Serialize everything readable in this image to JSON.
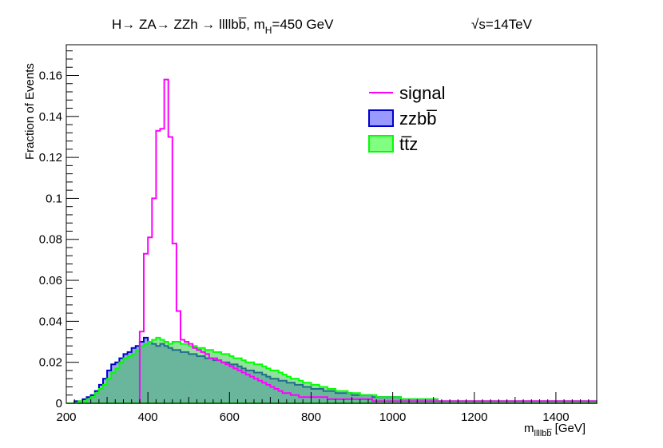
{
  "chart_data": {
    "type": "histogram",
    "title": "H→ ZA→ ZZh → llllbb̅, m_H=450 GeV",
    "title_main": "H→ ZA→ ZZh → llllbb̅, m",
    "title_sub": "H",
    "title_tail": "=450 GeV",
    "energy_label": "√s=14TeV",
    "ylabel": "Fraction of Events",
    "xlabel_main": "m",
    "xlabel_sub": "llllbb̅",
    "xlabel_unit": " [GeV]",
    "xlim": [
      200,
      1500
    ],
    "ylim": [
      0,
      0.175
    ],
    "x_ticks": [
      200,
      400,
      600,
      800,
      1000,
      1200,
      1400
    ],
    "y_ticks": [
      0,
      0.02,
      0.04,
      0.06,
      0.08,
      0.1,
      0.12,
      0.14,
      0.16
    ],
    "y_tick_labels": [
      "0",
      "0.02",
      "0.04",
      "0.06",
      "0.08",
      "0.1",
      "0.12",
      "0.14",
      "0.16"
    ],
    "bin_width": 10,
    "series": [
      {
        "name": "signal",
        "color": "#ff00ff",
        "fill": "none",
        "x_start": 380,
        "values": [
          0.035,
          0.073,
          0.081,
          0.1,
          0.133,
          0.134,
          0.158,
          0.13,
          0.078,
          0.045,
          0.031,
          0.03,
          0.029,
          0.027,
          0.026,
          0.025,
          0.024,
          0.022,
          0.022,
          0.021,
          0.02,
          0.019,
          0.018,
          0.017,
          0.016,
          0.015,
          0.014,
          0.013,
          0.012,
          0.011,
          0.01,
          0.009,
          0.008,
          0.007,
          0.006,
          0.005,
          0.005,
          0.004,
          0.004,
          0.003,
          0.003,
          0.003,
          0.003,
          0.003,
          0.003,
          0.003,
          0.002,
          0.002,
          0.002,
          0.002,
          0.002,
          0.002,
          0.002,
          0.002,
          0.002,
          0.002,
          0.002,
          0.001,
          0.001,
          0.001,
          0.001,
          0.001,
          0.001,
          0.001,
          0.001,
          0.001,
          0.001,
          0.001,
          0.001,
          0.001,
          0.001,
          0.001,
          0.001,
          0.001,
          0.001,
          0.001,
          0.001,
          0.001,
          0.001,
          0.001,
          0.001,
          0.001,
          0.001,
          0.001,
          0.001,
          0.001,
          0.001,
          0.001,
          0.001,
          0.001,
          0.001,
          0.001,
          0.001,
          0.001,
          0.001,
          0.001,
          0.001,
          0.001,
          0.001,
          0.001,
          0.001,
          0.001,
          0.001,
          0.001,
          0.001,
          0.001,
          0.001,
          0.001,
          0.001,
          0.001,
          0.001,
          0.001
        ]
      },
      {
        "name": "zzbb̅",
        "color": "#0000cc",
        "fill": "rgba(110,110,245,0.65)",
        "x_start": 200,
        "values": [
          0.0,
          0.0,
          0.001,
          0.001,
          0.002,
          0.003,
          0.004,
          0.006,
          0.009,
          0.012,
          0.016,
          0.019,
          0.02,
          0.022,
          0.024,
          0.025,
          0.027,
          0.028,
          0.03,
          0.032,
          0.03,
          0.029,
          0.028,
          0.029,
          0.028,
          0.027,
          0.026,
          0.026,
          0.025,
          0.025,
          0.024,
          0.024,
          0.023,
          0.023,
          0.022,
          0.022,
          0.021,
          0.021,
          0.02,
          0.02,
          0.019,
          0.019,
          0.018,
          0.017,
          0.016,
          0.016,
          0.015,
          0.015,
          0.014,
          0.013,
          0.012,
          0.012,
          0.011,
          0.011,
          0.01,
          0.01,
          0.009,
          0.009,
          0.008,
          0.008,
          0.007,
          0.007,
          0.007,
          0.006,
          0.006,
          0.006,
          0.005,
          0.005,
          0.005,
          0.005,
          0.004,
          0.004,
          0.004,
          0.004,
          0.004,
          0.003,
          0.003,
          0.003,
          0.003,
          0.003,
          0.003,
          0.003,
          0.002,
          0.002,
          0.002,
          0.002,
          0.002,
          0.002,
          0.002,
          0.002,
          0.002,
          0.001,
          0.001,
          0.001,
          0.001,
          0.001,
          0.001,
          0.001,
          0.001,
          0.001,
          0.001,
          0.001,
          0.001,
          0.001,
          0.001,
          0.001,
          0.001,
          0.001,
          0.001,
          0.001,
          0.001,
          0.001,
          0.001,
          0.001,
          0.001,
          0.001,
          0.001,
          0.001,
          0.001,
          0.001,
          0.001,
          0.001,
          0.001,
          0.001,
          0.001,
          0.001,
          0.001,
          0.001,
          0.001,
          0.001
        ]
      },
      {
        "name": "tt̅z",
        "color": "#00ff00",
        "fill": "rgba(60,200,80,0.55)",
        "x_start": 200,
        "values": [
          0.0,
          0.0,
          0.0,
          0.001,
          0.001,
          0.002,
          0.003,
          0.005,
          0.007,
          0.009,
          0.012,
          0.015,
          0.017,
          0.02,
          0.022,
          0.023,
          0.024,
          0.026,
          0.028,
          0.029,
          0.03,
          0.031,
          0.032,
          0.031,
          0.03,
          0.029,
          0.03,
          0.03,
          0.029,
          0.029,
          0.028,
          0.028,
          0.027,
          0.027,
          0.026,
          0.026,
          0.025,
          0.025,
          0.024,
          0.024,
          0.023,
          0.022,
          0.022,
          0.021,
          0.02,
          0.02,
          0.019,
          0.019,
          0.018,
          0.017,
          0.016,
          0.016,
          0.015,
          0.014,
          0.013,
          0.012,
          0.012,
          0.011,
          0.01,
          0.01,
          0.009,
          0.009,
          0.008,
          0.008,
          0.007,
          0.007,
          0.006,
          0.006,
          0.006,
          0.005,
          0.005,
          0.005,
          0.004,
          0.004,
          0.004,
          0.004,
          0.003,
          0.003,
          0.003,
          0.003,
          0.003,
          0.003,
          0.002,
          0.002,
          0.002,
          0.002,
          0.002,
          0.002,
          0.002,
          0.002,
          0.002,
          0.001,
          0.001,
          0.001,
          0.001,
          0.001,
          0.001,
          0.001,
          0.001,
          0.001,
          0.001,
          0.001,
          0.001,
          0.001,
          0.001,
          0.001,
          0.001,
          0.001,
          0.001,
          0.001,
          0.001,
          0.001,
          0.001,
          0.001,
          0.001,
          0.001,
          0.001,
          0.001,
          0.001,
          0.001,
          0.001,
          0.001,
          0.001,
          0.001,
          0.001,
          0.001,
          0.001,
          0.001,
          0.001,
          0.001
        ]
      }
    ],
    "legend": {
      "position": "top-right",
      "entries": [
        {
          "label": "signal",
          "style": "line",
          "color": "#ff00ff"
        },
        {
          "label": "zzbb̅",
          "style": "box",
          "color": "#0000cc",
          "fill": "#9999ff"
        },
        {
          "label": "tt̅z",
          "style": "box",
          "color": "#00ff00",
          "fill": "#80ff80"
        }
      ]
    },
    "grid": false
  }
}
